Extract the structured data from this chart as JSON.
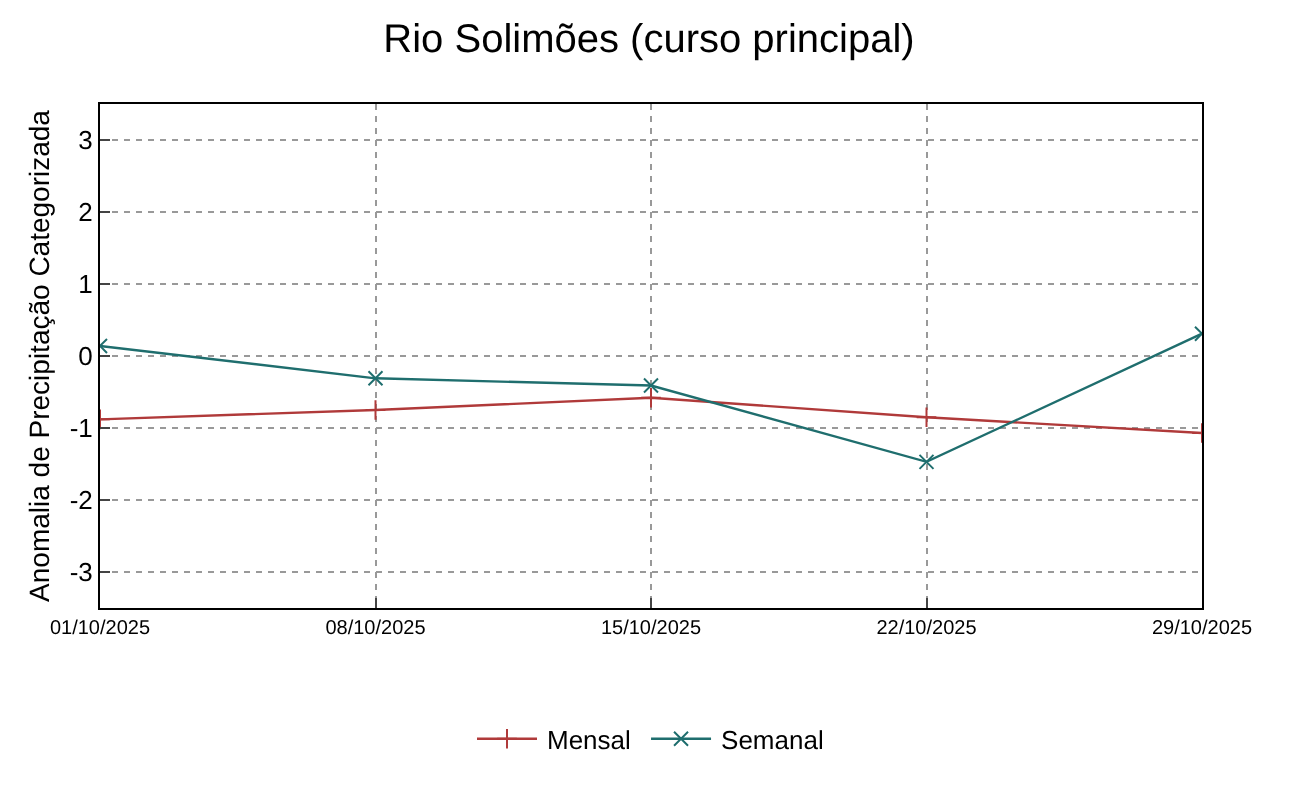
{
  "chart_data": {
    "type": "line",
    "title": "Rio Solimões (curso principal)",
    "ylabel": "Anomalia de Precipitação Categorizada",
    "x": [
      "2025-10-01",
      "2025-10-08",
      "2025-10-15",
      "2025-10-22",
      "2025-10-29"
    ],
    "series": [
      {
        "name": "Mensal",
        "color": "#b03a3a",
        "marker": "cross",
        "values": [
          -0.88,
          -0.75,
          -0.58,
          -0.85,
          -1.07
        ]
      },
      {
        "name": "Semanal",
        "color": "#1f6e6e",
        "marker": "x",
        "values": [
          0.14,
          -0.31,
          -0.41,
          -1.47,
          0.31
        ]
      }
    ],
    "xlim": [
      "2025-10-01",
      "2025-10-29"
    ],
    "xticks": [
      {
        "value": "2025-10-01",
        "label": "01/10/2025"
      },
      {
        "value": "2025-10-08",
        "label": "08/10/2025"
      },
      {
        "value": "2025-10-15",
        "label": "15/10/2025"
      },
      {
        "value": "2025-10-22",
        "label": "22/10/2025"
      },
      {
        "value": "2025-10-29",
        "label": "29/10/2025"
      }
    ],
    "ylim": [
      -3.5,
      3.5
    ],
    "yticks": [
      -3,
      -2,
      -1,
      0,
      1,
      2,
      3
    ],
    "grid": true,
    "legend": "bottom",
    "line_style": "solid"
  }
}
